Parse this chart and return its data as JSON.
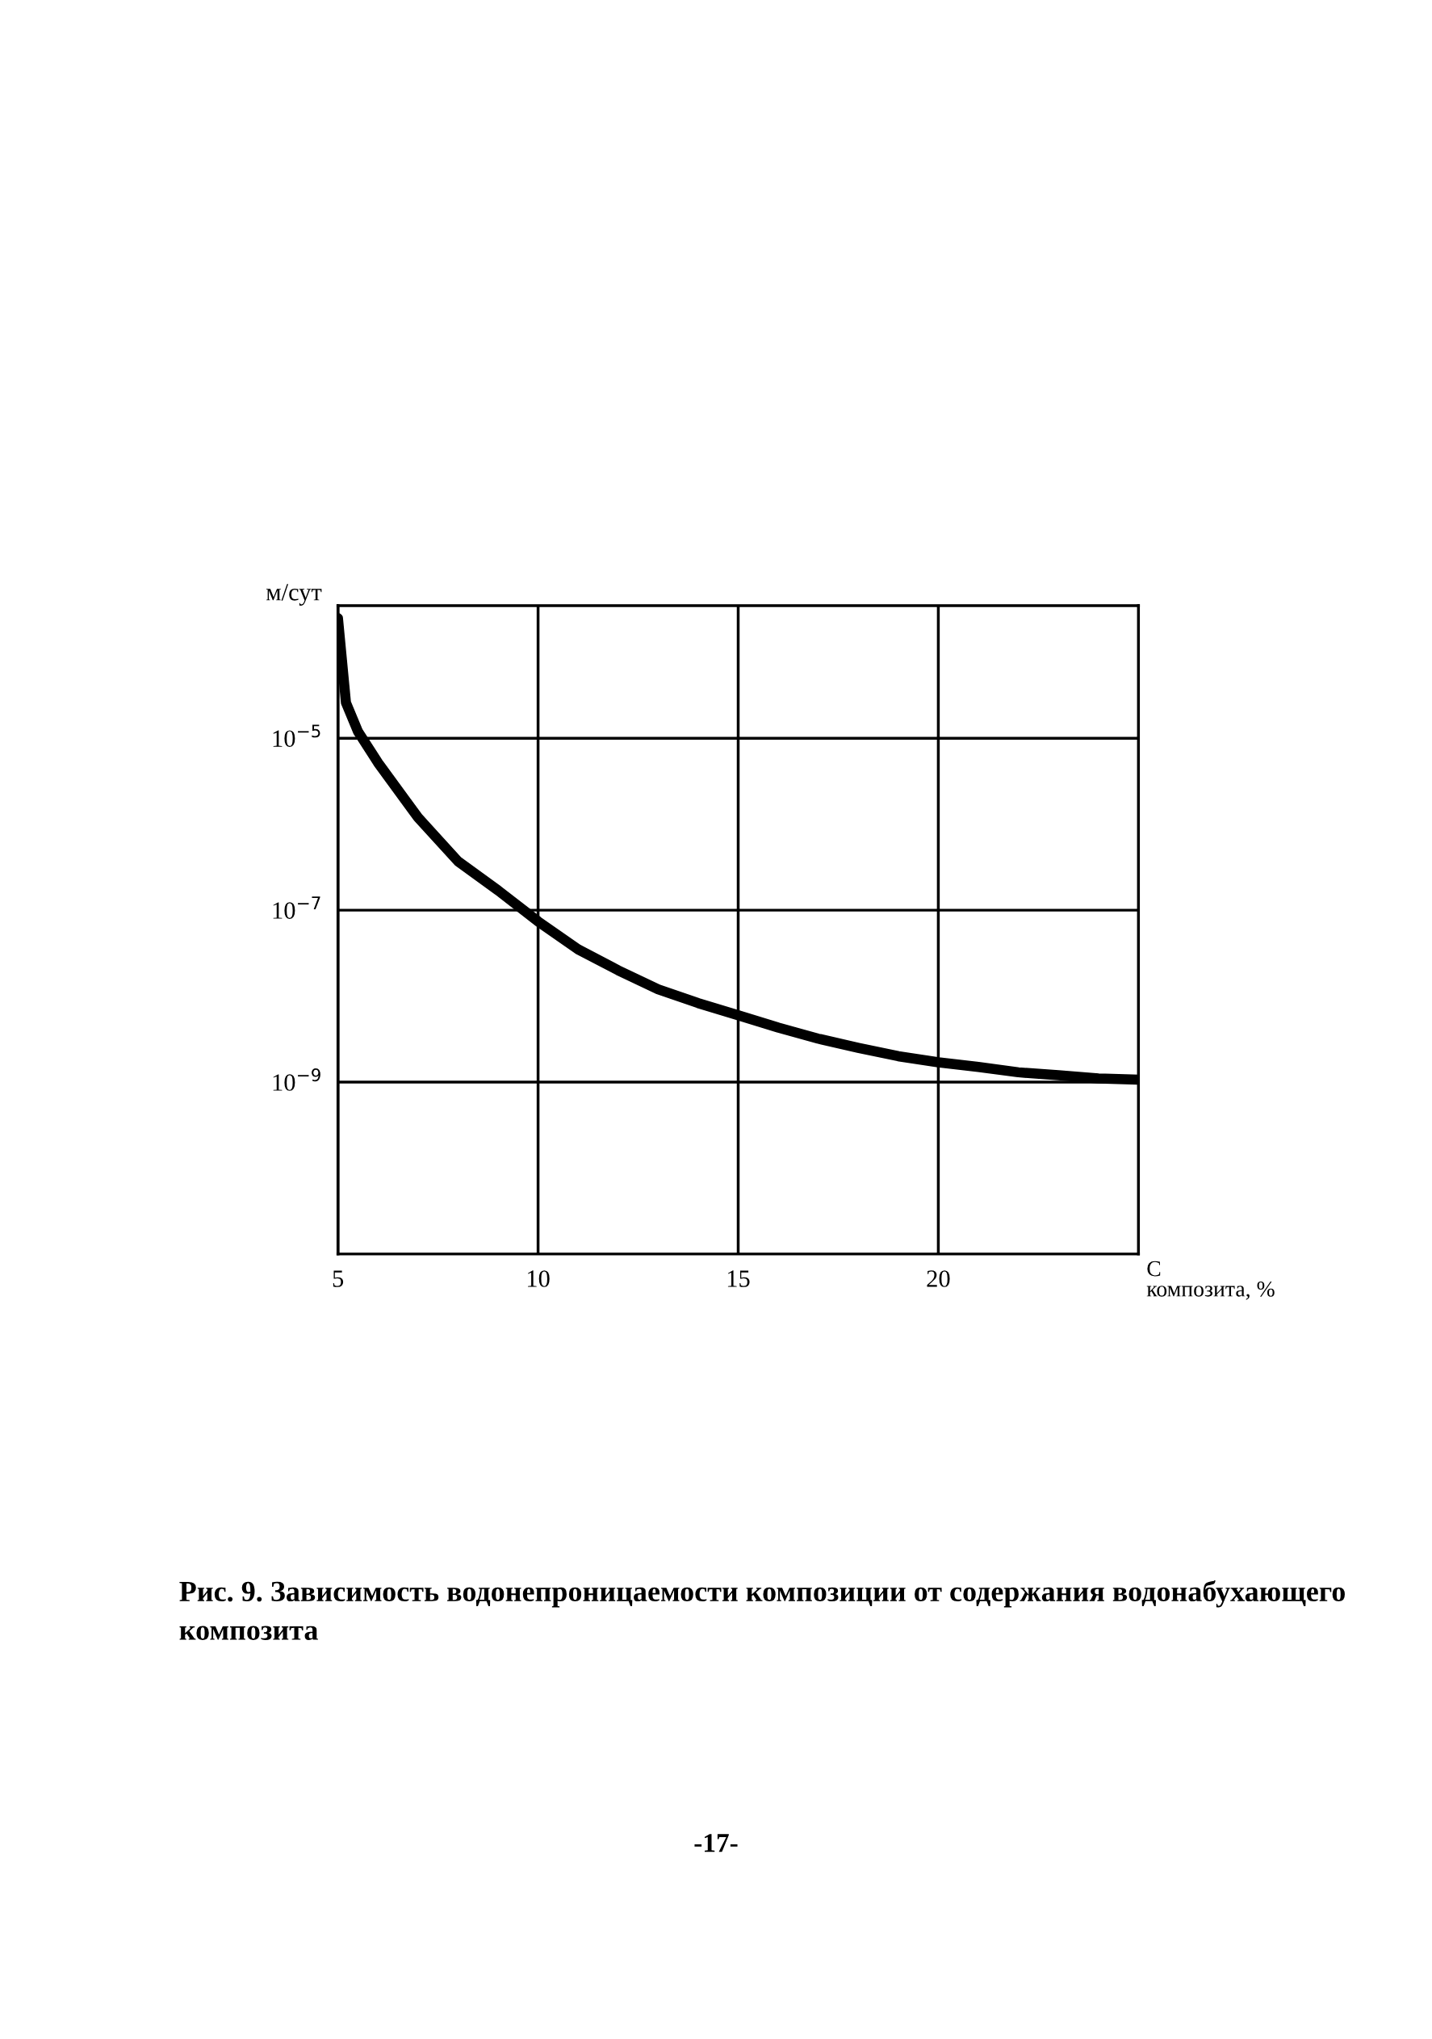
{
  "chart_data": {
    "type": "line",
    "title": "Рис. 9. Зависимость водонепроницаемости композиции от содержания водонабухающего композита",
    "xlabel": "С\nкомпозита, %",
    "ylabel": "м/сут",
    "x": [
      5,
      5.2,
      5.5,
      6,
      7,
      8,
      9,
      10,
      11,
      12,
      13,
      14,
      15,
      16,
      17,
      18,
      19,
      20,
      21,
      22,
      23,
      24,
      25
    ],
    "series": [
      {
        "color": "#000000",
        "values": [
          0.00025,
          2.6e-05,
          1.2e-05,
          5.2e-06,
          1.2e-06,
          3.7e-07,
          1.7e-07,
          7.4e-08,
          3.5e-08,
          2e-08,
          1.2e-08,
          8.3e-09,
          6e-09,
          4.3e-09,
          3.2e-09,
          2.5e-09,
          2e-09,
          1.7e-09,
          1.5e-09,
          1.3e-09,
          1.2e-09,
          1.1e-09,
          1.07e-09
        ]
      }
    ],
    "log": "y",
    "xlim": [
      5,
      25
    ],
    "ylim": [
      1e-11,
      0.00035
    ],
    "xticks": [
      5,
      10,
      15,
      20
    ],
    "yticks": [
      {
        "value": 1e-09,
        "label": "10$^{−9}$"
      },
      {
        "value": 1e-07,
        "label": "10$^{−7}$"
      },
      {
        "value": 1e-05,
        "label": "10$^{−5}$"
      }
    ],
    "grid": true,
    "legend": false,
    "line_style": "solid",
    "annotations": [
      "-17-"
    ]
  }
}
